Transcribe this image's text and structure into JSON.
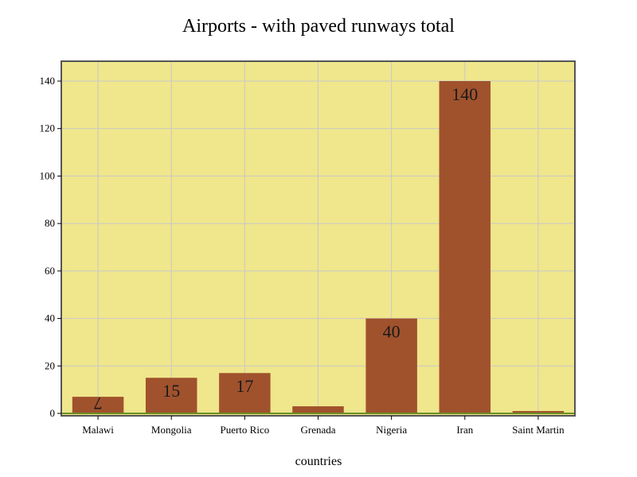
{
  "chart_data": {
    "type": "bar",
    "title": "Airports - with paved runways total",
    "xlabel": "countries",
    "ylabel": "",
    "categories": [
      "Malawi",
      "Mongolia",
      "Puerto Rico",
      "Grenada",
      "Nigeria",
      "Iran",
      "Saint Martin"
    ],
    "values": [
      7,
      15,
      17,
      3,
      40,
      140,
      1
    ],
    "data_labels": [
      "7",
      "15",
      "17",
      "",
      "40",
      "140",
      ""
    ],
    "ylim": [
      0,
      145
    ],
    "yticks": [
      0,
      20,
      40,
      60,
      80,
      100,
      120,
      140
    ],
    "grid": true,
    "colors": {
      "bar": "#a0522d",
      "plot_background": "#f0e68c",
      "frame": "#555555",
      "baseline": "#6b8e23"
    }
  }
}
